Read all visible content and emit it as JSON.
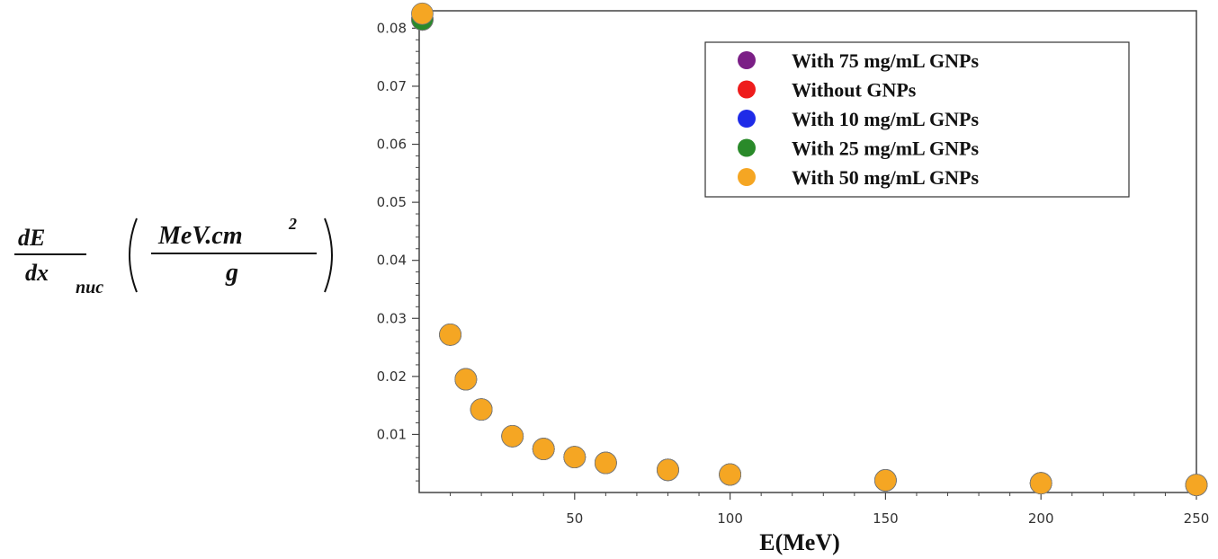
{
  "chart_data": {
    "type": "scatter",
    "title": "",
    "xlabel": "E(MeV)",
    "ylabel": {
      "fraction_numerator": "dE",
      "fraction_denominator": "dx",
      "subscript": "nuc",
      "unit_numerator": "MeV.cm",
      "unit_exponent": "2",
      "unit_denominator": "g"
    },
    "xlim": [
      0,
      250
    ],
    "ylim": [
      0,
      0.083
    ],
    "xticks": [
      50,
      100,
      150,
      200,
      250
    ],
    "xtick_labels": [
      "50",
      "100",
      "150",
      "200",
      "250"
    ],
    "yticks": [
      0.01,
      0.02,
      0.03,
      0.04,
      0.05,
      0.06,
      0.07,
      0.08
    ],
    "ytick_labels": [
      "0.01",
      "0.02",
      "0.03",
      "0.04",
      "0.05",
      "0.06",
      "0.07",
      "0.08"
    ],
    "grid": false,
    "legend_position": "top-right",
    "x": [
      1,
      10,
      15,
      20,
      30,
      40,
      50,
      60,
      80,
      100,
      150,
      200,
      250
    ],
    "series": [
      {
        "name": "With 75 mg/mL GNPs",
        "color": "#7b1f86",
        "values": [
          0.0815,
          0.0272,
          0.0195,
          0.0143,
          0.0097,
          0.0075,
          0.0061,
          0.0051,
          0.0039,
          0.0031,
          0.0021,
          0.0016,
          0.0013
        ]
      },
      {
        "name": "Without GNPs",
        "color": "#ee1c1c",
        "values": [
          0.0815,
          0.0272,
          0.0195,
          0.0143,
          0.0097,
          0.0075,
          0.0061,
          0.0051,
          0.0039,
          0.0031,
          0.0021,
          0.0016,
          0.0013
        ]
      },
      {
        "name": "With 10 mg/mL GNPs",
        "color": "#1e2be8",
        "values": [
          0.0815,
          0.0272,
          0.0195,
          0.0143,
          0.0097,
          0.0075,
          0.0061,
          0.0051,
          0.0039,
          0.0031,
          0.0021,
          0.0016,
          0.0013
        ]
      },
      {
        "name": "With 25 mg/mL GNPs",
        "color": "#2a8a2a",
        "values": [
          0.0815,
          0.0272,
          0.0195,
          0.0143,
          0.0097,
          0.0075,
          0.0061,
          0.0051,
          0.0039,
          0.0031,
          0.0021,
          0.0016,
          0.0013
        ]
      },
      {
        "name": "With 50 mg/mL GNPs",
        "color": "#f5a623",
        "values": [
          0.0825,
          0.0272,
          0.0195,
          0.0143,
          0.0097,
          0.0075,
          0.0061,
          0.0051,
          0.0039,
          0.0031,
          0.0021,
          0.0016,
          0.0013
        ]
      }
    ]
  }
}
